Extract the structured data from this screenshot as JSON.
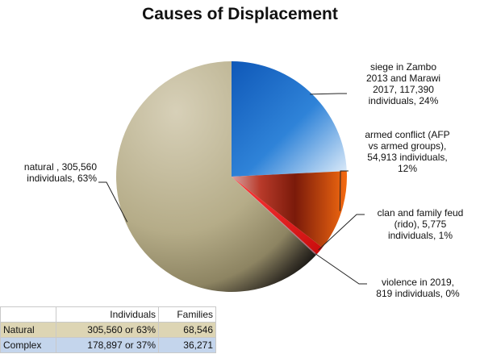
{
  "chart_data": {
    "type": "pie",
    "title": "Causes of Displacement",
    "slices": [
      {
        "label": "siege in Zambo 2013 and Marawi 2017",
        "value": 117390,
        "percent": 24,
        "color": "#2a78d2",
        "text": [
          "siege in Zambo",
          "2013 and Marawi",
          "2017,  117,390",
          "individuals, 24%"
        ]
      },
      {
        "label": "armed conflict (AFP vs armed groups)",
        "value": 54913,
        "percent": 12,
        "color": "#e8560e",
        "text": [
          "armed conflict (AFP",
          "vs armed groups),",
          "54,913 individuals,",
          "12%"
        ]
      },
      {
        "label": "clan and family feud (rido)",
        "value": 5775,
        "percent": 1,
        "color": "#e01818",
        "text": [
          "clan and family feud",
          "(rido),  5,775",
          "individuals, 1%"
        ]
      },
      {
        "label": "violence in 2019",
        "value": 819,
        "percent": 0,
        "color": "#c48aa0",
        "text": [
          "violence in 2019,",
          "819 individuals, 0%"
        ]
      },
      {
        "label": "natural",
        "value": 305560,
        "percent": 63,
        "color": "#c6bd9c",
        "text": [
          "natural ,  305,560",
          "individuals, 63%"
        ]
      }
    ]
  },
  "table": {
    "headers": [
      "",
      "Individuals",
      "Families"
    ],
    "rows": [
      [
        "Natural",
        "305,560 or 63%",
        "68,546"
      ],
      [
        "Complex",
        "178,897 or 37%",
        "36,271"
      ]
    ]
  }
}
